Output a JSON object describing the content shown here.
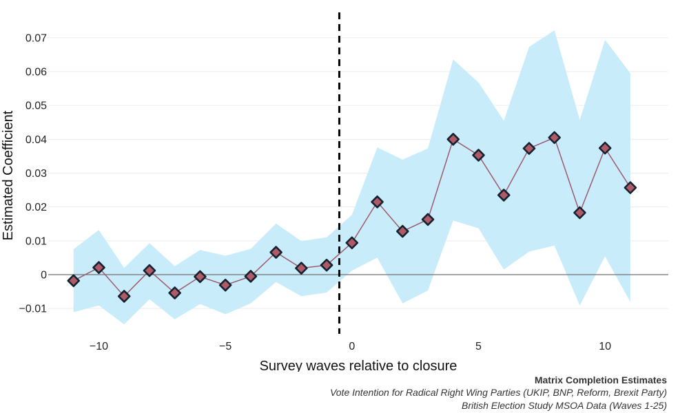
{
  "chart_data": {
    "type": "line",
    "xlabel": "Survey waves relative to closure",
    "ylabel": "Estimated Coefficient",
    "xlim": [
      -12,
      12.5
    ],
    "ylim": [
      -0.0175,
      0.0775
    ],
    "xticks": [
      -10,
      -5,
      0,
      5,
      10
    ],
    "xtick_labels": [
      "−10",
      "−5",
      "0",
      "5",
      "10"
    ],
    "yticks": [
      -0.01,
      0,
      0.01,
      0.02,
      0.03,
      0.04,
      0.05,
      0.06,
      0.07
    ],
    "ytick_labels": [
      "−0.01",
      "0",
      "0.01",
      "0.02",
      "0.03",
      "0.04",
      "0.05",
      "0.06",
      "0.07"
    ],
    "grid": true,
    "reference_line_y": 0,
    "treatment_line_x": -0.5,
    "x": [
      -11,
      -10,
      -9,
      -8,
      -7,
      -6,
      -5,
      -4,
      -3,
      -2,
      -1,
      0,
      1,
      2,
      3,
      4,
      5,
      6,
      7,
      8,
      9,
      10,
      11
    ],
    "y": [
      -0.0018,
      0.0021,
      -0.0064,
      0.0012,
      -0.0054,
      -0.0006,
      -0.0031,
      -0.0005,
      0.0066,
      0.0019,
      0.0028,
      0.0094,
      0.0215,
      0.0128,
      0.0163,
      0.04,
      0.0353,
      0.0235,
      0.0373,
      0.0405,
      0.0183,
      0.0374,
      0.0257
    ],
    "ci_lower": [
      -0.0111,
      -0.0091,
      -0.0147,
      -0.0073,
      -0.0132,
      -0.0087,
      -0.0117,
      -0.0085,
      -0.0022,
      -0.0064,
      -0.0053,
      0.0012,
      0.005,
      -0.0085,
      -0.0047,
      0.016,
      0.0137,
      0.0015,
      0.0068,
      0.0086,
      -0.0091,
      0.0054,
      -0.0081
    ],
    "ci_upper": [
      0.0075,
      0.0132,
      0.002,
      0.0093,
      0.0025,
      0.0073,
      0.0056,
      0.0076,
      0.0151,
      0.0099,
      0.011,
      0.0177,
      0.0376,
      0.034,
      0.0373,
      0.0636,
      0.0568,
      0.0455,
      0.0673,
      0.0722,
      0.0457,
      0.0694,
      0.0595
    ]
  },
  "caption": {
    "title": "Matrix Completion Estimates",
    "subtitle": "Vote Intention for Radical Right Wing Parties (UKIP, BNP, Reform, Brexit Party)",
    "source": "British Election Study MSOA Data (Waves 1-25)"
  },
  "colors": {
    "ci_band": "#c9ecfa",
    "line": "#9b5a6e",
    "marker_fill": "#b05a66",
    "marker_edge": "#122232",
    "grid": "#ebebeb",
    "zero_line": "#6e6e6e",
    "treatment_line": "#000000"
  }
}
